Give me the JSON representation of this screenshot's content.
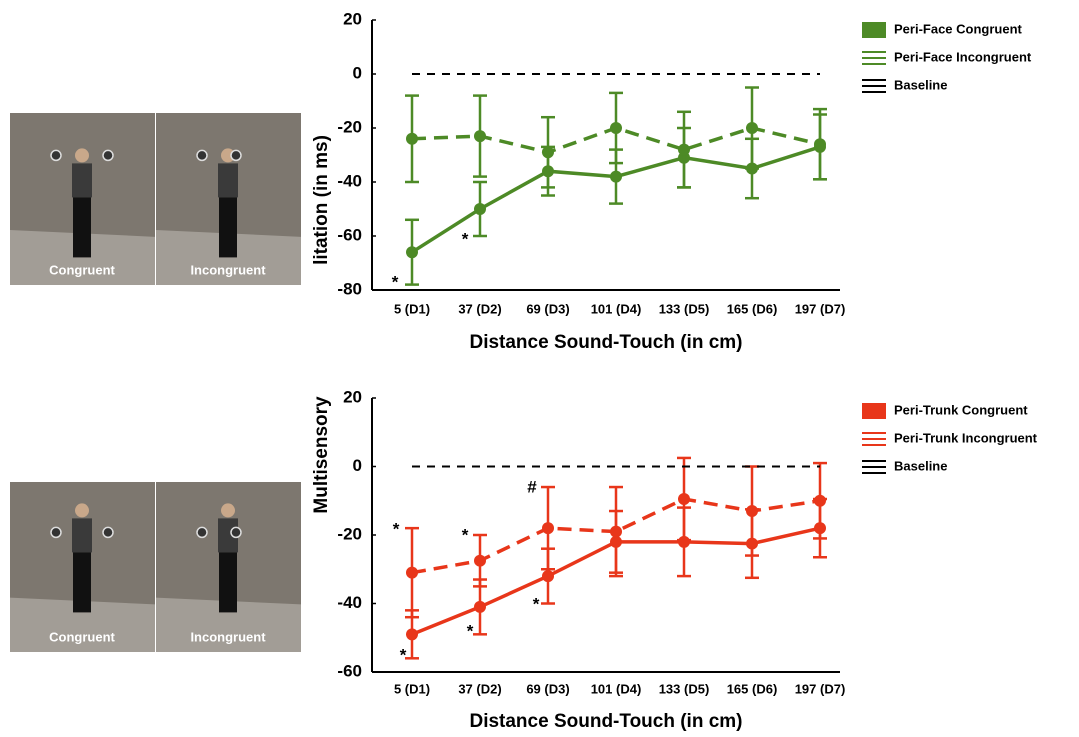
{
  "images": [
    {
      "labels": [
        "Congruent",
        "Incongruent"
      ]
    },
    {
      "labels": [
        "Congruent",
        "Incongruent"
      ]
    }
  ],
  "chart_data": [
    {
      "type": "line",
      "ylabel": "litation (in ms)",
      "xlabel": "Distance Sound-Touch (in cm)",
      "categories": [
        "5 (D1)",
        "37 (D2)",
        "69 (D3)",
        "101 (D4)",
        "133 (D5)",
        "165 (D6)",
        "197 (D7)"
      ],
      "ylim": [
        -80,
        20
      ],
      "yticks": [
        20,
        0,
        -20,
        -40,
        -60,
        -80
      ],
      "legend": "right",
      "series": [
        {
          "name": "Peri-Face Congruent",
          "color": "#4d8a26",
          "style": "solid",
          "values": [
            -66,
            -50,
            -36,
            -38,
            -31,
            -35,
            -27
          ],
          "errors": [
            12,
            10,
            9,
            10,
            11,
            11,
            12
          ]
        },
        {
          "name": "Peri-Face Incongruent",
          "color": "#4d8a26",
          "style": "dashed",
          "values": [
            -24,
            -23,
            -29,
            -20,
            -28,
            -20,
            -26
          ],
          "errors": [
            16,
            15,
            13,
            13,
            14,
            15,
            13
          ]
        },
        {
          "name": "Baseline",
          "color": "#000000",
          "style": "dashed",
          "values": [
            0,
            0,
            0,
            0,
            0,
            0,
            0
          ]
        }
      ],
      "annotations": [
        "*",
        "*"
      ]
    },
    {
      "type": "line",
      "ylabel": "Multisensory",
      "xlabel": "Distance Sound-Touch (in cm)",
      "categories": [
        "5 (D1)",
        "37 (D2)",
        "69 (D3)",
        "101 (D4)",
        "133 (D5)",
        "165 (D6)",
        "197 (D7)"
      ],
      "ylim": [
        -60,
        20
      ],
      "yticks": [
        20,
        0,
        -20,
        -40,
        -60
      ],
      "legend": "right",
      "series": [
        {
          "name": "Peri-Trunk Congruent",
          "color": "#e8361a",
          "style": "solid",
          "values": [
            -49,
            -41,
            -32,
            -22,
            -22,
            -22.5,
            -18
          ],
          "errors": [
            7,
            8,
            8,
            9,
            10,
            10,
            8.5
          ]
        },
        {
          "name": "Peri-Trunk Incongruent",
          "color": "#e8361a",
          "style": "dashed",
          "values": [
            -31,
            -27.5,
            -18,
            -19,
            -9.5,
            -13,
            -10
          ],
          "errors": [
            13,
            7.5,
            12,
            13,
            12,
            13,
            11
          ]
        },
        {
          "name": "Baseline",
          "color": "#000000",
          "style": "dashed",
          "values": [
            0,
            0,
            0,
            0,
            0,
            0,
            0
          ]
        }
      ],
      "annotations": [
        "*",
        "*",
        "#",
        "*",
        "*",
        "*"
      ]
    }
  ]
}
